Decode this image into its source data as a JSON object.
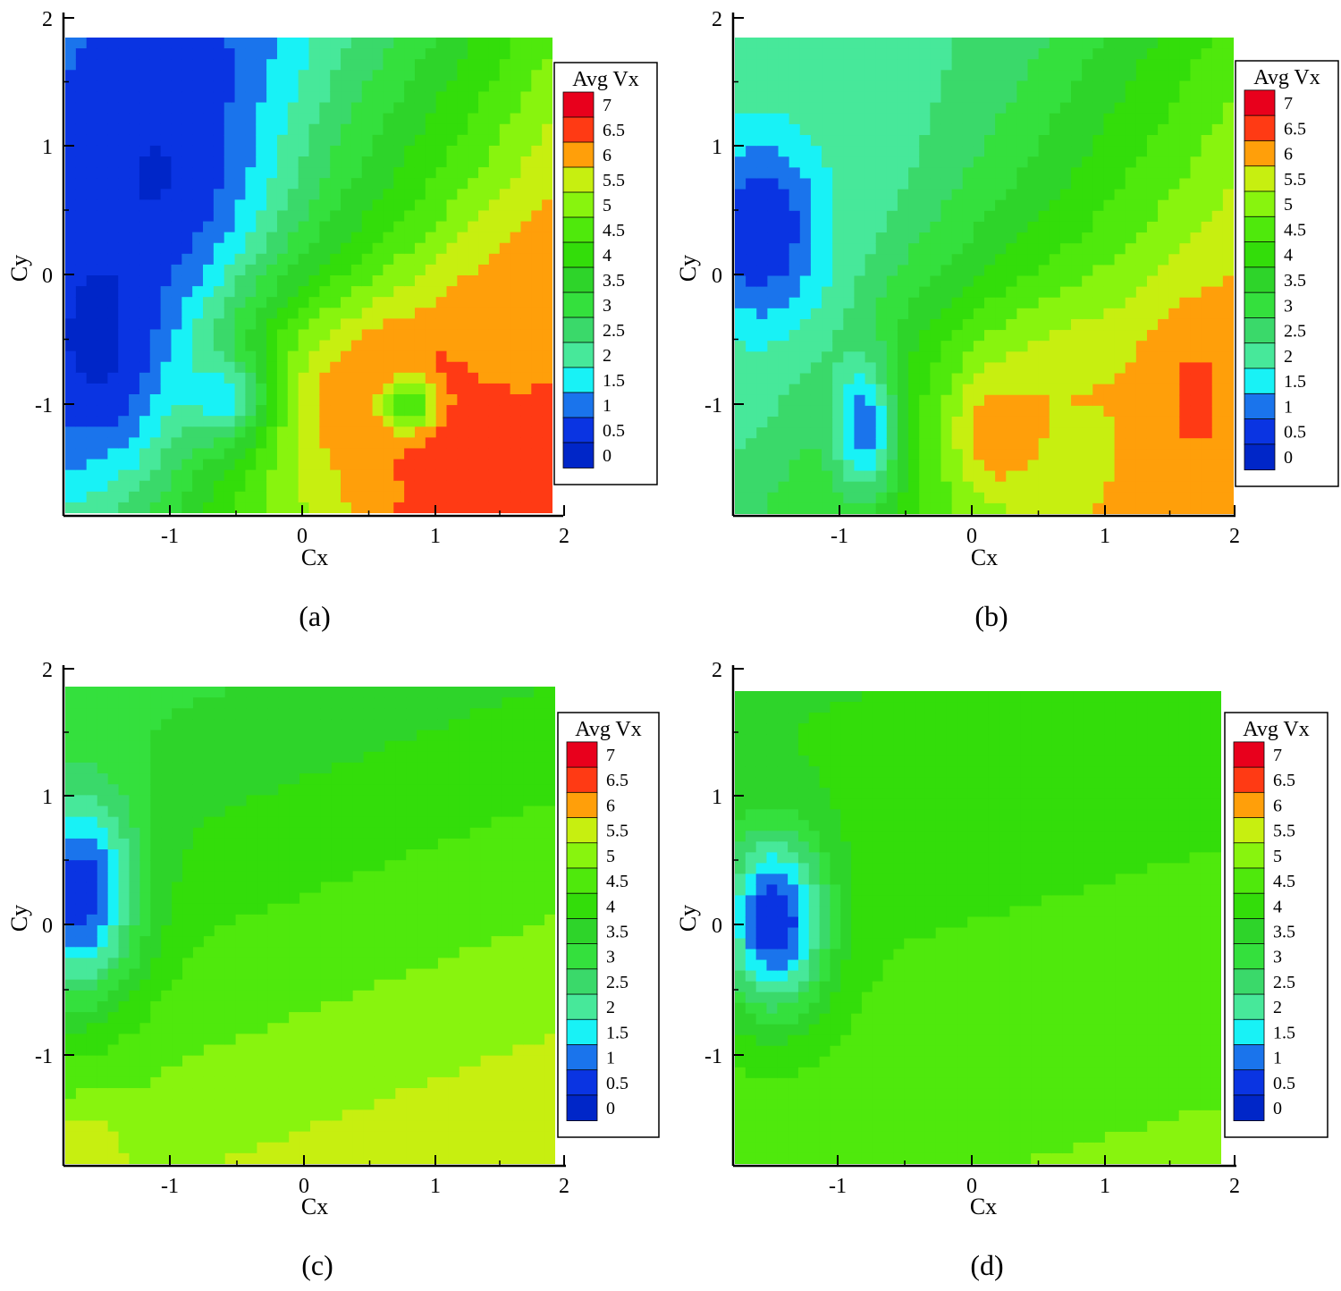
{
  "colorbar": {
    "title": "Avg Vx",
    "levels": [
      "7",
      "6.5",
      "6",
      "5.5",
      "5",
      "4.5",
      "4",
      "3.5",
      "3",
      "2.5",
      "2",
      "1.5",
      "1",
      "0.5",
      "0"
    ],
    "colors": [
      "#e8001c",
      "#ff3a14",
      "#ff9f0a",
      "#c7ef10",
      "#88f40e",
      "#4fe90c",
      "#33dd0a",
      "#2ed42a",
      "#34e03d",
      "#3ad96a",
      "#47e89a",
      "#18f2f6",
      "#1a74ec",
      "#0a34e2",
      "#0026c8"
    ]
  },
  "chart_data": [
    {
      "type": "heatmap",
      "caption": "(a)",
      "xlabel": "Cx",
      "ylabel": "Cy",
      "xlim": [
        -1.8,
        1.9
      ],
      "ylim": [
        -1.9,
        1.8
      ],
      "x_ticks": [
        "-1",
        "0",
        "1",
        "2"
      ],
      "y_ticks": [
        "2",
        "1",
        "0",
        "-1"
      ],
      "colorbar_title": "Avg Vx",
      "colorbar_levels": [
        "7",
        "6.5",
        "6",
        "5.5",
        "5",
        "4.5",
        "4",
        "3.5",
        "3",
        "2.5",
        "2",
        "1.5",
        "1",
        "0.5",
        "0"
      ],
      "features": [
        {
          "kind": "low",
          "x": -1.1,
          "y": 0.8,
          "value": 0.5,
          "sx": 0.75,
          "sy": 1.1
        },
        {
          "kind": "low",
          "x": -1.5,
          "y": -0.6,
          "value": 0.3,
          "sx": 0.6,
          "sy": 1.0
        },
        {
          "kind": "low",
          "x": -0.55,
          "y": -1.0,
          "value": 0.3,
          "sx": 0.35,
          "sy": 0.35
        },
        {
          "kind": "high",
          "x": 0.9,
          "y": -1.0,
          "value": 6.8,
          "sx": 1.2,
          "sy": 0.8
        },
        {
          "kind": "high",
          "x": 1.6,
          "y": -0.4,
          "value": 6.2,
          "sx": 0.5,
          "sy": 0.6
        },
        {
          "kind": "low",
          "x": 0.8,
          "y": -1.05,
          "value": 4.5,
          "sx": 0.22,
          "sy": 0.22
        }
      ]
    },
    {
      "type": "heatmap",
      "caption": "(b)",
      "xlabel": "Cx",
      "ylabel": "Cy",
      "xlim": [
        -1.8,
        2.0
      ],
      "ylim": [
        -1.9,
        1.8
      ],
      "x_ticks": [
        "-1",
        "0",
        "1",
        "2"
      ],
      "y_ticks": [
        "2",
        "1",
        "0",
        "-1"
      ],
      "colorbar_title": "Avg Vx",
      "colorbar_levels": [
        "7",
        "6.5",
        "6",
        "5.5",
        "5",
        "4.5",
        "4",
        "3.5",
        "3",
        "2.5",
        "2",
        "1.5",
        "1",
        "0.5",
        "0"
      ],
      "features": [
        {
          "kind": "low",
          "x": -1.6,
          "y": 0.3,
          "value": 0.5,
          "sx": 0.5,
          "sy": 0.8
        },
        {
          "kind": "low",
          "x": -0.8,
          "y": -1.2,
          "value": 0.5,
          "sx": 0.25,
          "sy": 0.55
        },
        {
          "kind": "high",
          "x": 0.9,
          "y": -1.0,
          "value": 6.0,
          "sx": 1.2,
          "sy": 0.8
        },
        {
          "kind": "high",
          "x": 1.7,
          "y": -1.0,
          "value": 6.6,
          "sx": 0.35,
          "sy": 0.7
        },
        {
          "kind": "high",
          "x": 0.2,
          "y": -1.3,
          "value": 6.5,
          "sx": 0.3,
          "sy": 0.4
        }
      ]
    },
    {
      "type": "heatmap",
      "caption": "(c)",
      "xlabel": "Cx",
      "ylabel": "Cy",
      "xlim": [
        -1.8,
        1.9
      ],
      "ylim": [
        -1.9,
        1.8
      ],
      "x_ticks": [
        "-1",
        "0",
        "1",
        "2"
      ],
      "y_ticks": [
        "2",
        "1",
        "0",
        "-1"
      ],
      "colorbar_title": "Avg Vx",
      "colorbar_levels": [
        "7",
        "6.5",
        "6",
        "5.5",
        "5",
        "4.5",
        "4",
        "3.5",
        "3",
        "2.5",
        "2",
        "1.5",
        "1",
        "0.5",
        "0"
      ],
      "features": [
        {
          "kind": "low",
          "x": -1.7,
          "y": 0.2,
          "value": 0.6,
          "sx": 0.45,
          "sy": 0.8
        },
        {
          "kind": "high",
          "x": -1.7,
          "y": -1.8,
          "value": 6.0,
          "sx": 0.3,
          "sy": 0.3
        }
      ]
    },
    {
      "type": "heatmap",
      "caption": "(d)",
      "xlabel": "Cx",
      "ylabel": "Cy",
      "xlim": [
        -1.8,
        1.9
      ],
      "ylim": [
        -1.9,
        1.8
      ],
      "x_ticks": [
        "-1",
        "0",
        "1",
        "2"
      ],
      "y_ticks": [
        "2",
        "1",
        "0",
        "-1"
      ],
      "colorbar_title": "Avg Vx",
      "colorbar_levels": [
        "7",
        "6.5",
        "6",
        "5.5",
        "5",
        "4.5",
        "4",
        "3.5",
        "3",
        "2.5",
        "2",
        "1.5",
        "1",
        "0.5",
        "0"
      ],
      "features": [
        {
          "kind": "low",
          "x": -1.5,
          "y": 0.0,
          "value": 0.5,
          "sx": 0.4,
          "sy": 0.7
        }
      ]
    }
  ]
}
